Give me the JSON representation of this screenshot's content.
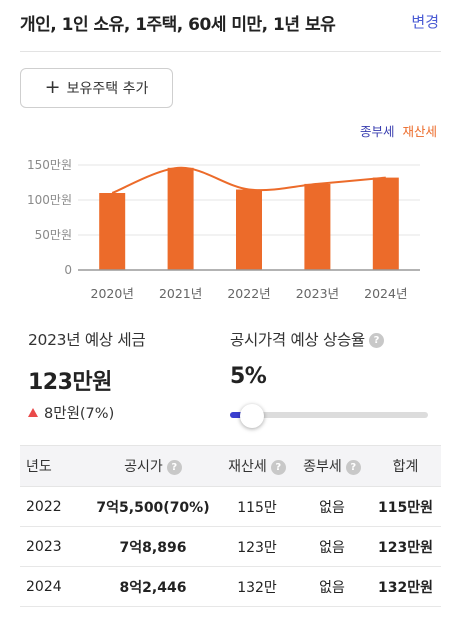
{
  "header": {
    "title": "개인, 1인 소유, 1주택, 60세 미만, 1년 보유",
    "edit_label": "변경"
  },
  "add_button": {
    "label": "보유주택 추가",
    "icon": "plus-icon"
  },
  "legend": {
    "jongbu": "종부세",
    "jaesan": "재산세"
  },
  "colors": {
    "bar": "#ec6b2a",
    "line": "#ec6b2a",
    "legend_jongbu": "#3a3fb0",
    "accent": "#3a3fd0",
    "up": "#e94a4a"
  },
  "chart_data": {
    "type": "bar",
    "categories": [
      "2020년",
      "2021년",
      "2022년",
      "2023년",
      "2024년"
    ],
    "series": [
      {
        "name": "재산세",
        "values": [
          110,
          146,
          115,
          123,
          132
        ]
      },
      {
        "name": "종부세",
        "values": [
          0,
          0,
          0,
          0,
          0
        ]
      }
    ],
    "trend_line": [
      110,
      146,
      115,
      123,
      132
    ],
    "yticks": [
      "0",
      "50만원",
      "100만원",
      "150만원"
    ],
    "ytick_values": [
      0,
      50,
      100,
      150
    ],
    "ylim": [
      0,
      150
    ],
    "grid": true,
    "legend_position": "top-right"
  },
  "stats": {
    "tax_label": "2023년 예상 세금",
    "tax_value": "123만원",
    "tax_change": "8만원(7%)",
    "rate_label": "공시가격 예상 상승율",
    "rate_value": "5%",
    "rate_slider": 0.05
  },
  "table": {
    "headers": [
      "년도",
      "공시가",
      "재산세",
      "종부세",
      "합계"
    ],
    "rows": [
      {
        "year": "2022",
        "price": "7억5,500(70%)",
        "jaesan": "115만",
        "jongbu": "없음",
        "total": "115만원"
      },
      {
        "year": "2023",
        "price": "7억8,896",
        "jaesan": "123만",
        "jongbu": "없음",
        "total": "123만원"
      },
      {
        "year": "2024",
        "price": "8억2,446",
        "jaesan": "132만",
        "jongbu": "없음",
        "total": "132만원"
      }
    ]
  }
}
